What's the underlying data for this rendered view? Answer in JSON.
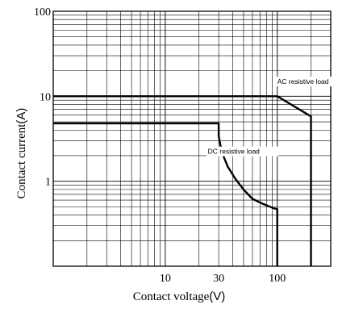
{
  "chart_data": {
    "type": "line",
    "xscale": "log",
    "yscale": "log",
    "xlim": [
      1,
      300
    ],
    "ylim": [
      0.1,
      100
    ],
    "grid": true,
    "xlabel": {
      "text": "Contact voltage",
      "unit": "(V)"
    },
    "ylabel": {
      "text": "Contact current",
      "unit": "(A)"
    },
    "x_ticks": [
      {
        "value": 10,
        "label": "10"
      },
      {
        "value": 30,
        "label": "30"
      },
      {
        "value": 100,
        "label": "100"
      }
    ],
    "y_ticks": [
      {
        "value": 100,
        "label": "100"
      },
      {
        "value": 10,
        "label": "10"
      },
      {
        "value": 1,
        "label": "1"
      }
    ],
    "series": [
      {
        "name": "AC resistive load",
        "label_anchor": {
          "x": 100,
          "y": 14
        },
        "points": [
          [
            1,
            10
          ],
          [
            100,
            10
          ],
          [
            200,
            5.8
          ],
          [
            200,
            0.1
          ]
        ]
      },
      {
        "name": "DC resistive load",
        "label_anchor": {
          "x": 24,
          "y": 2.1
        },
        "points": [
          [
            1,
            4.8
          ],
          [
            30,
            4.8
          ],
          [
            30,
            3.4
          ],
          [
            32,
            2.2
          ],
          [
            36,
            1.5
          ],
          [
            42,
            1.08
          ],
          [
            50,
            0.8
          ],
          [
            60,
            0.62
          ],
          [
            75,
            0.54
          ],
          [
            93,
            0.48
          ],
          [
            100,
            0.47
          ],
          [
            100,
            0.1
          ]
        ]
      }
    ]
  }
}
